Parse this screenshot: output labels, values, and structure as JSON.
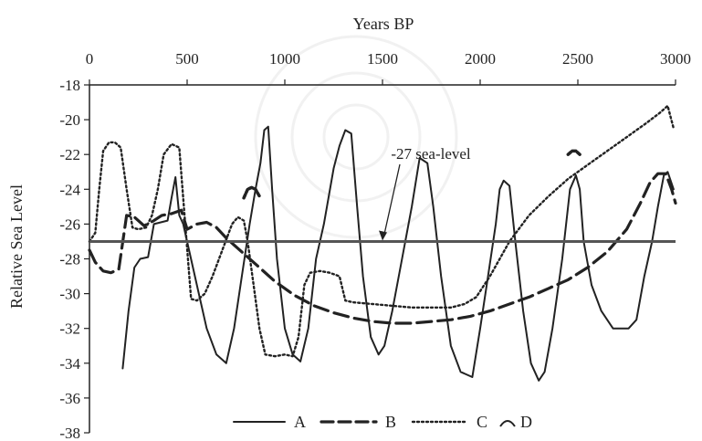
{
  "chart_data": {
    "type": "line",
    "xlabel": "Years BP",
    "ylabel": "Relative Sea Level",
    "xlim": [
      0,
      3000
    ],
    "ylim": [
      -38,
      -18
    ],
    "x_ticks": [
      0,
      500,
      1000,
      1500,
      2000,
      2500,
      3000
    ],
    "y_ticks": [
      -18,
      -20,
      -22,
      -24,
      -26,
      -28,
      -30,
      -32,
      -34,
      -36,
      -38
    ],
    "x_axis_position": "top",
    "grid": false,
    "legend_position": "bottom",
    "reference_line": {
      "y": -27
    },
    "annotation": {
      "text": "-27 sea-level",
      "x": 1500,
      "y": -27
    },
    "series": [
      {
        "name": "A",
        "style": "solid",
        "color": "#222222",
        "points": [
          [
            170,
            -34.3
          ],
          [
            200,
            -31
          ],
          [
            230,
            -28.5
          ],
          [
            260,
            -28
          ],
          [
            300,
            -27.9
          ],
          [
            330,
            -26
          ],
          [
            400,
            -25.8
          ],
          [
            420,
            -24.5
          ],
          [
            440,
            -23.3
          ],
          [
            460,
            -25.5
          ],
          [
            480,
            -26
          ],
          [
            510,
            -27.5
          ],
          [
            560,
            -30
          ],
          [
            600,
            -32
          ],
          [
            650,
            -33.5
          ],
          [
            700,
            -34
          ],
          [
            740,
            -32
          ],
          [
            780,
            -29
          ],
          [
            820,
            -26
          ],
          [
            850,
            -24
          ],
          [
            875,
            -22.5
          ],
          [
            895,
            -20.6
          ],
          [
            915,
            -20.4
          ],
          [
            935,
            -24
          ],
          [
            960,
            -28
          ],
          [
            1000,
            -32
          ],
          [
            1040,
            -33.5
          ],
          [
            1080,
            -33.9
          ],
          [
            1120,
            -32
          ],
          [
            1160,
            -28
          ],
          [
            1200,
            -26
          ],
          [
            1250,
            -22.8
          ],
          [
            1280,
            -21.5
          ],
          [
            1310,
            -20.6
          ],
          [
            1340,
            -20.8
          ],
          [
            1370,
            -25
          ],
          [
            1400,
            -29
          ],
          [
            1440,
            -32.5
          ],
          [
            1480,
            -33.5
          ],
          [
            1510,
            -33
          ],
          [
            1550,
            -31
          ],
          [
            1600,
            -28
          ],
          [
            1650,
            -25
          ],
          [
            1690,
            -22.2
          ],
          [
            1730,
            -22.5
          ],
          [
            1760,
            -25
          ],
          [
            1800,
            -29
          ],
          [
            1850,
            -33
          ],
          [
            1900,
            -34.5
          ],
          [
            1960,
            -34.8
          ],
          [
            2000,
            -32
          ],
          [
            2040,
            -29
          ],
          [
            2080,
            -26
          ],
          [
            2100,
            -24
          ],
          [
            2120,
            -23.5
          ],
          [
            2150,
            -23.8
          ],
          [
            2180,
            -27
          ],
          [
            2220,
            -31
          ],
          [
            2260,
            -34
          ],
          [
            2300,
            -35
          ],
          [
            2330,
            -34.5
          ],
          [
            2370,
            -32
          ],
          [
            2420,
            -28
          ],
          [
            2460,
            -24
          ],
          [
            2490,
            -23.2
          ],
          [
            2510,
            -24
          ],
          [
            2530,
            -27
          ],
          [
            2570,
            -29.5
          ],
          [
            2620,
            -31
          ],
          [
            2680,
            -32
          ],
          [
            2760,
            -32
          ],
          [
            2800,
            -31.5
          ],
          [
            2840,
            -29
          ],
          [
            2880,
            -27
          ],
          [
            2910,
            -25
          ],
          [
            2940,
            -23.2
          ],
          [
            2960,
            -23
          ],
          [
            2990,
            -24
          ]
        ]
      },
      {
        "name": "B",
        "style": "dashed",
        "color": "#222222",
        "points": [
          [
            0,
            -27.5
          ],
          [
            30,
            -28.2
          ],
          [
            70,
            -28.7
          ],
          [
            110,
            -28.8
          ],
          [
            150,
            -28.6
          ],
          [
            190,
            -25.5
          ],
          [
            230,
            -25.6
          ],
          [
            280,
            -26.1
          ],
          [
            330,
            -25.8
          ],
          [
            370,
            -25.5
          ],
          [
            420,
            -25.4
          ],
          [
            470,
            -25.2
          ],
          [
            500,
            -26.3
          ],
          [
            550,
            -26
          ],
          [
            600,
            -25.9
          ],
          [
            650,
            -26.2
          ],
          [
            700,
            -26.8
          ],
          [
            760,
            -27.4
          ],
          [
            850,
            -28.3
          ],
          [
            950,
            -29.3
          ],
          [
            1050,
            -30.1
          ],
          [
            1150,
            -30.7
          ],
          [
            1250,
            -31.1
          ],
          [
            1350,
            -31.4
          ],
          [
            1450,
            -31.6
          ],
          [
            1550,
            -31.7
          ],
          [
            1650,
            -31.7
          ],
          [
            1750,
            -31.6
          ],
          [
            1850,
            -31.5
          ],
          [
            1950,
            -31.3
          ],
          [
            2050,
            -31
          ],
          [
            2150,
            -30.6
          ],
          [
            2250,
            -30.2
          ],
          [
            2350,
            -29.7
          ],
          [
            2450,
            -29.2
          ],
          [
            2550,
            -28.5
          ],
          [
            2650,
            -27.6
          ],
          [
            2750,
            -26.3
          ],
          [
            2820,
            -24.8
          ],
          [
            2870,
            -23.6
          ],
          [
            2910,
            -23.1
          ],
          [
            2950,
            -23.1
          ],
          [
            2980,
            -24
          ],
          [
            3000,
            -24.8
          ]
        ]
      },
      {
        "name": "C",
        "style": "dotted",
        "color": "#222222",
        "points": [
          [
            0,
            -27
          ],
          [
            30,
            -26.5
          ],
          [
            50,
            -24
          ],
          [
            70,
            -21.8
          ],
          [
            100,
            -21.3
          ],
          [
            130,
            -21.3
          ],
          [
            160,
            -21.6
          ],
          [
            190,
            -24
          ],
          [
            220,
            -26.2
          ],
          [
            250,
            -26.3
          ],
          [
            290,
            -26.2
          ],
          [
            320,
            -25.5
          ],
          [
            350,
            -24
          ],
          [
            380,
            -22
          ],
          [
            420,
            -21.4
          ],
          [
            460,
            -21.6
          ],
          [
            490,
            -26
          ],
          [
            520,
            -30.3
          ],
          [
            550,
            -30.4
          ],
          [
            590,
            -30
          ],
          [
            630,
            -29
          ],
          [
            680,
            -27.5
          ],
          [
            730,
            -26
          ],
          [
            760,
            -25.6
          ],
          [
            790,
            -25.8
          ],
          [
            810,
            -27
          ],
          [
            840,
            -29.5
          ],
          [
            870,
            -32
          ],
          [
            900,
            -33.5
          ],
          [
            950,
            -33.6
          ],
          [
            1000,
            -33.5
          ],
          [
            1040,
            -33.6
          ],
          [
            1070,
            -32.5
          ],
          [
            1100,
            -29.5
          ],
          [
            1130,
            -28.8
          ],
          [
            1180,
            -28.7
          ],
          [
            1230,
            -28.8
          ],
          [
            1280,
            -29
          ],
          [
            1310,
            -30.4
          ],
          [
            1350,
            -30.5
          ],
          [
            1450,
            -30.6
          ],
          [
            1550,
            -30.7
          ],
          [
            1650,
            -30.8
          ],
          [
            1750,
            -30.8
          ],
          [
            1850,
            -30.8
          ],
          [
            1920,
            -30.6
          ],
          [
            1980,
            -30.2
          ],
          [
            2050,
            -29
          ],
          [
            2150,
            -27
          ],
          [
            2250,
            -25.5
          ],
          [
            2350,
            -24.4
          ],
          [
            2450,
            -23.4
          ],
          [
            2550,
            -22.6
          ],
          [
            2650,
            -21.8
          ],
          [
            2750,
            -21
          ],
          [
            2850,
            -20.2
          ],
          [
            2920,
            -19.6
          ],
          [
            2960,
            -19.2
          ],
          [
            2990,
            -20.5
          ]
        ]
      },
      {
        "name": "D",
        "style": "dashed-short",
        "color": "#222222",
        "points": [
          [
            790,
            -24.5
          ],
          [
            810,
            -24
          ],
          [
            830,
            -23.9
          ],
          [
            850,
            -24
          ],
          [
            870,
            -24.4
          ]
        ],
        "extra_segments": [
          [
            [
              2450,
              -22
            ],
            [
              2470,
              -21.8
            ],
            [
              2490,
              -21.8
            ],
            [
              2510,
              -22
            ]
          ]
        ]
      }
    ]
  }
}
